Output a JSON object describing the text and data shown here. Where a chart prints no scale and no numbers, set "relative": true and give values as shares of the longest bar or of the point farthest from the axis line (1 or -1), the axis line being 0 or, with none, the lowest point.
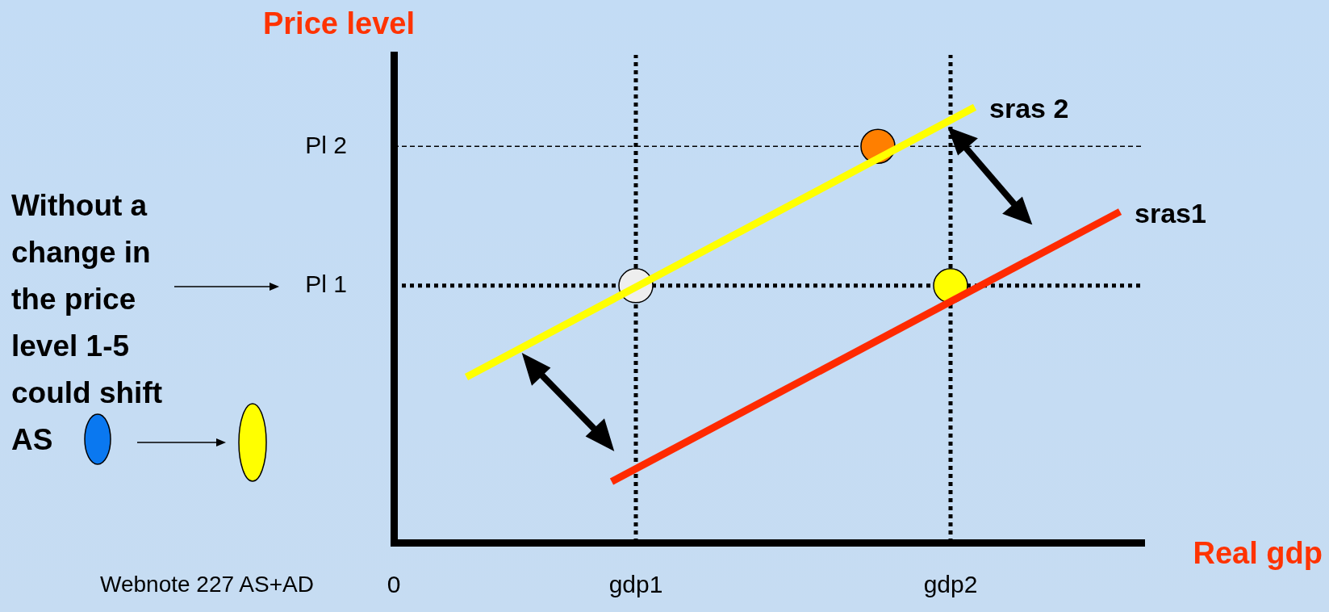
{
  "chart_data": {
    "type": "line",
    "relative": true,
    "ylabel": "Price level",
    "xlabel": "Real gdp",
    "grid": false,
    "legend": false,
    "marker": "none",
    "categories": [
      "0",
      null,
      null,
      null,
      null,
      null,
      null,
      null,
      null,
      null,
      "gdp1",
      null,
      null,
      null,
      null,
      null,
      null,
      null,
      null,
      null,
      null,
      null,
      null,
      "gdp2",
      null,
      null,
      null,
      null,
      null,
      null,
      null,
      null
    ],
    "series": [
      {
        "name": "sras 2",
        "color": "#ffff00",
        "values": [
          null,
          null,
          null,
          0.38,
          null,
          null,
          null,
          null,
          null,
          null,
          null,
          null,
          null,
          null,
          null,
          null,
          null,
          null,
          null,
          null,
          null,
          null,
          null,
          null,
          1,
          null,
          null,
          null,
          null,
          null,
          null,
          null
        ]
      },
      {
        "name": "sras1",
        "color": "#ff2a00",
        "values": [
          null,
          null,
          null,
          null,
          null,
          null,
          null,
          null,
          null,
          0.14,
          null,
          null,
          null,
          null,
          null,
          null,
          null,
          null,
          null,
          null,
          null,
          null,
          null,
          null,
          null,
          null,
          null,
          null,
          null,
          null,
          0.76,
          null
        ]
      },
      {
        "type": "scatter",
        "values": [
          null,
          null,
          null,
          null,
          null,
          null,
          null,
          null,
          null,
          null,
          0.59,
          null,
          null,
          null,
          null,
          null,
          null,
          null,
          null,
          null,
          0.91,
          null,
          null,
          0.59,
          null,
          null,
          null,
          null,
          null,
          null,
          null,
          null
        ],
        "colors": [
          null,
          null,
          null,
          null,
          null,
          null,
          null,
          null,
          null,
          null,
          "#eeeeee",
          null,
          null,
          null,
          null,
          null,
          null,
          null,
          null,
          null,
          "#ff7f00",
          null,
          null,
          "#ffff00",
          null,
          null,
          null,
          null,
          null,
          null,
          null,
          null
        ],
        "marker": "circle"
      }
    ],
    "ref_lines": [
      {
        "axis": "y",
        "value": 0.59,
        "label": "Pl 1",
        "line_style": "dotted"
      },
      {
        "axis": "y",
        "value": 0.91,
        "label": "Pl 2",
        "line_style": "dashed"
      },
      {
        "axis": "x",
        "value": "gdp1",
        "label": null,
        "line_style": "dotted"
      },
      {
        "axis": "x",
        "value": "gdp2",
        "label": null,
        "line_style": "dotted"
      }
    ],
    "annotations": [
      "Without a change in the price level 1-5 could shift AS",
      "Webnote 227 AS+AD"
    ]
  }
}
